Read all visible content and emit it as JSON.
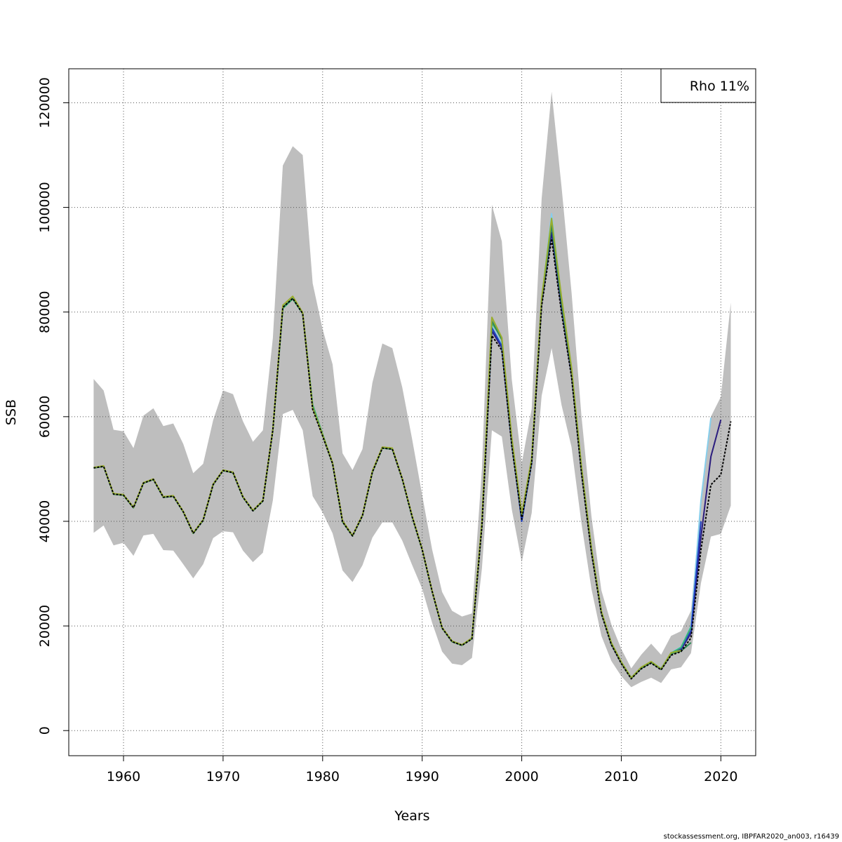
{
  "chart_data": {
    "type": "line",
    "xlabel": "Years",
    "ylabel": "SSB",
    "xlim": [
      1954.5,
      2023.5
    ],
    "ylim": [
      -4800,
      126500
    ],
    "x_ticks": [
      1960,
      1970,
      1980,
      1990,
      2000,
      2010,
      2020
    ],
    "y_ticks": [
      0,
      20000,
      40000,
      60000,
      80000,
      100000,
      120000
    ],
    "grid": true,
    "legend": {
      "placement": "top-right",
      "text": "Rho 11%"
    },
    "colors": {
      "band": "#bebebe",
      "base": "#000000",
      "peel1": "#2b1d7e",
      "peel2": "#87ceeb",
      "peel3": "#1f3fbf",
      "peel4": "#3cb371",
      "peel5": "#2e8b57",
      "peel6": "#9aad2e"
    },
    "confidence_band": {
      "x": [
        1957,
        1958,
        1959,
        1960,
        1961,
        1962,
        1963,
        1964,
        1965,
        1966,
        1967,
        1968,
        1969,
        1970,
        1971,
        1972,
        1973,
        1974,
        1975,
        1976,
        1977,
        1978,
        1979,
        1980,
        1981,
        1982,
        1983,
        1984,
        1985,
        1986,
        1987,
        1988,
        1989,
        1990,
        1991,
        1992,
        1993,
        1994,
        1995,
        1996,
        1997,
        1998,
        1999,
        2000,
        2001,
        2002,
        2003,
        2004,
        2005,
        2006,
        2007,
        2008,
        2009,
        2010,
        2011,
        2012,
        2013,
        2014,
        2015,
        2016,
        2017,
        2018,
        2019,
        2020,
        2021
      ],
      "upper": [
        67200,
        65000,
        57500,
        57200,
        54000,
        60200,
        61600,
        58200,
        58700,
        54800,
        49200,
        51000,
        59300,
        65000,
        64300,
        59100,
        55200,
        57400,
        75000,
        108000,
        111700,
        110000,
        85500,
        76700,
        70000,
        53000,
        49800,
        53800,
        66500,
        74000,
        73100,
        65600,
        55600,
        45000,
        34600,
        26500,
        22900,
        21800,
        22400,
        50000,
        100500,
        93500,
        67100,
        51100,
        61500,
        101700,
        122100,
        103900,
        83800,
        60100,
        41000,
        26800,
        20300,
        15600,
        11900,
        14500,
        16600,
        14500,
        18100,
        19000,
        22900,
        44000,
        60000,
        63800,
        81800
      ],
      "lower": [
        37800,
        39200,
        35400,
        35900,
        33400,
        37300,
        37600,
        34500,
        34400,
        31800,
        29100,
        31800,
        36800,
        38100,
        37900,
        34400,
        32200,
        34000,
        44000,
        60500,
        61300,
        57400,
        44800,
        41700,
        37700,
        30600,
        28400,
        31600,
        36900,
        39800,
        39800,
        36300,
        31600,
        27100,
        20600,
        15100,
        12800,
        12500,
        13900,
        31000,
        57400,
        56200,
        42300,
        32200,
        41600,
        64000,
        73100,
        62200,
        54200,
        39600,
        27100,
        18100,
        13300,
        10400,
        8300,
        9300,
        10100,
        9100,
        11700,
        12100,
        14800,
        28200,
        37100,
        37600,
        43000
      ]
    },
    "series": [
      {
        "color_key": "base",
        "dashed": true,
        "x": [
          1957,
          1958,
          1959,
          1960,
          1961,
          1962,
          1963,
          1964,
          1965,
          1966,
          1967,
          1968,
          1969,
          1970,
          1971,
          1972,
          1973,
          1974,
          1975,
          1976,
          1977,
          1978,
          1979,
          1980,
          1981,
          1982,
          1983,
          1984,
          1985,
          1986,
          1987,
          1988,
          1989,
          1990,
          1991,
          1992,
          1993,
          1994,
          1995,
          1996,
          1997,
          1998,
          1999,
          2000,
          2001,
          2002,
          2003,
          2004,
          2005,
          2006,
          2007,
          2008,
          2009,
          2010,
          2011,
          2012,
          2013,
          2014,
          2015,
          2016,
          2017,
          2018,
          2019,
          2020,
          2021
        ],
        "y": [
          50200,
          50500,
          45200,
          45000,
          42600,
          47300,
          48000,
          44600,
          44800,
          41800,
          37700,
          40200,
          47000,
          49700,
          49300,
          44600,
          42000,
          43900,
          57500,
          80900,
          82600,
          79700,
          61400,
          56300,
          51000,
          39900,
          37200,
          41100,
          49400,
          54000,
          53800,
          48100,
          40800,
          34600,
          26600,
          19600,
          17000,
          16300,
          17500,
          39000,
          75500,
          72700,
          54400,
          40400,
          51200,
          81100,
          94000,
          79800,
          67600,
          49200,
          34000,
          22300,
          16400,
          12800,
          9900,
          11800,
          12900,
          11600,
          14400,
          15100,
          17700,
          34600,
          47000,
          48900,
          59100
        ]
      },
      {
        "color_key": "peel1",
        "dashed": false,
        "x": [
          1995,
          1996,
          1997,
          1998,
          1999,
          2000,
          2001,
          2002,
          2003,
          2004,
          2005,
          2006,
          2007,
          2008,
          2009,
          2010,
          2011,
          2012,
          2013,
          2014,
          2015,
          2016,
          2017,
          2018,
          2019,
          2020
        ],
        "y": [
          17500,
          39200,
          76400,
          73200,
          54800,
          40600,
          51500,
          81700,
          95200,
          80700,
          68200,
          49600,
          34300,
          22500,
          16500,
          12900,
          10000,
          11900,
          13000,
          11700,
          14600,
          15500,
          18600,
          37000,
          52400,
          59400
        ]
      },
      {
        "color_key": "peel2",
        "dashed": false,
        "x": [
          1995,
          1996,
          1997,
          1998,
          1999,
          2000,
          2001,
          2002,
          2003,
          2004,
          2005,
          2006,
          2007,
          2008,
          2009,
          2010,
          2011,
          2012,
          2013,
          2014,
          2015,
          2016,
          2017,
          2018,
          2019
        ],
        "y": [
          17600,
          39500,
          77300,
          73800,
          55300,
          40700,
          51800,
          82600,
          98800,
          82600,
          69400,
          50500,
          34900,
          22800,
          16800,
          13100,
          10100,
          12100,
          13200,
          11900,
          14900,
          16000,
          20000,
          44000,
          59800
        ]
      },
      {
        "color_key": "peel3",
        "dashed": false,
        "x": [
          1995,
          1996,
          1997,
          1998,
          1999,
          2000,
          2001,
          2002,
          2003,
          2004,
          2005,
          2006,
          2007,
          2008,
          2009,
          2010,
          2011,
          2012,
          2013,
          2014,
          2015,
          2016,
          2017,
          2018
        ],
        "y": [
          17600,
          39400,
          77000,
          73500,
          55000,
          40000,
          51300,
          82100,
          96700,
          81600,
          68800,
          50000,
          34600,
          22600,
          16600,
          13000,
          10000,
          12000,
          13100,
          11800,
          14800,
          15700,
          19100,
          40000
        ]
      },
      {
        "color_key": "peel4",
        "dashed": false,
        "x": [
          1957,
          1958,
          1959,
          1960,
          1961,
          1962,
          1963,
          1964,
          1965,
          1966,
          1967,
          1968,
          1969,
          1970,
          1971,
          1972,
          1973,
          1974,
          1975,
          1976,
          1977,
          1978,
          1979,
          1980,
          1981,
          1982,
          1983,
          1984,
          1985,
          1986,
          1987,
          1988,
          1989,
          1990,
          1991,
          1992,
          1993,
          1994,
          1995,
          1996,
          1997,
          1998,
          1999,
          2000,
          2001,
          2002,
          2003,
          2004,
          2005,
          2006,
          2007,
          2008,
          2009,
          2010,
          2011,
          2012,
          2013,
          2014,
          2015,
          2016,
          2017
        ],
        "y": [
          50200,
          50500,
          45200,
          45000,
          42600,
          47300,
          48000,
          44600,
          44800,
          41800,
          37700,
          40200,
          47000,
          49700,
          49300,
          44600,
          42000,
          43900,
          57500,
          80700,
          82500,
          79700,
          62300,
          56700,
          51100,
          39900,
          37200,
          41100,
          49400,
          54100,
          53900,
          48100,
          40800,
          34600,
          26600,
          19600,
          17000,
          16300,
          17600,
          39600,
          77900,
          75000,
          55500,
          41100,
          51900,
          82300,
          97400,
          82300,
          69100,
          50300,
          34800,
          22700,
          16700,
          13100,
          10100,
          12000,
          13100,
          11800,
          14800,
          15900,
          19800
        ]
      },
      {
        "color_key": "peel5",
        "dashed": false,
        "x": [
          1957,
          1958,
          1959,
          1960,
          1961,
          1962,
          1963,
          1964,
          1965,
          1966,
          1967,
          1968,
          1969,
          1970,
          1971,
          1972,
          1973,
          1974,
          1975,
          1976,
          1977,
          1978,
          1979,
          1980,
          1981,
          1982,
          1983,
          1984,
          1985,
          1986,
          1987,
          1988,
          1989,
          1990,
          1991,
          1992,
          1993,
          1994,
          1995,
          1996,
          1997,
          1998,
          1999,
          2000,
          2001,
          2002,
          2003,
          2004,
          2005,
          2006,
          2007,
          2008,
          2009,
          2010,
          2011,
          2012,
          2013,
          2014,
          2015,
          2016,
          2017
        ],
        "y": [
          50200,
          50500,
          45200,
          45000,
          42600,
          47300,
          48000,
          44600,
          44800,
          41800,
          37700,
          40200,
          47000,
          49700,
          49300,
          44600,
          42000,
          43900,
          57500,
          80900,
          82600,
          79700,
          61800,
          56400,
          51000,
          39900,
          37200,
          41100,
          49400,
          54000,
          53800,
          48100,
          40800,
          34600,
          26600,
          19600,
          17000,
          16300,
          17600,
          39500,
          78300,
          74700,
          55600,
          41200,
          51800,
          82200,
          96700,
          81900,
          68900,
          50100,
          34700,
          22600,
          16600,
          13000,
          10000,
          11900,
          13000,
          11700,
          14700,
          15200,
          16800
        ]
      },
      {
        "color_key": "peel6",
        "dashed": false,
        "x": [
          1957,
          1958,
          1959,
          1960,
          1961,
          1962,
          1963,
          1964,
          1965,
          1966,
          1967,
          1968,
          1969,
          1970,
          1971,
          1972,
          1973,
          1974,
          1975,
          1976,
          1977,
          1978,
          1979,
          1980,
          1981,
          1982,
          1983,
          1984,
          1985,
          1986,
          1987,
          1988,
          1989,
          1990,
          1991,
          1992,
          1993,
          1994,
          1995,
          1996,
          1997,
          1998,
          1999,
          2000,
          2001,
          2002,
          2003,
          2004,
          2005,
          2006,
          2007,
          2008,
          2009,
          2010,
          2011,
          2012,
          2013,
          2014,
          2015,
          2016
        ],
        "y": [
          50300,
          50600,
          45300,
          45100,
          42700,
          47400,
          48100,
          44700,
          44900,
          41900,
          37800,
          40300,
          47100,
          49800,
          49400,
          44700,
          42100,
          44000,
          57600,
          81300,
          83000,
          79900,
          61700,
          56500,
          51200,
          40100,
          37300,
          41200,
          49600,
          54200,
          54000,
          48200,
          41000,
          34700,
          26700,
          19700,
          17100,
          16400,
          17700,
          39800,
          79000,
          75100,
          56000,
          41400,
          52100,
          82600,
          97900,
          82800,
          69400,
          50500,
          34900,
          22800,
          16800,
          13100,
          10100,
          12100,
          13200,
          11800,
          14900,
          15300
        ]
      }
    ]
  },
  "footer": {
    "credit": "stockassessment.org, IBPFAR2020_an003, r16439"
  }
}
